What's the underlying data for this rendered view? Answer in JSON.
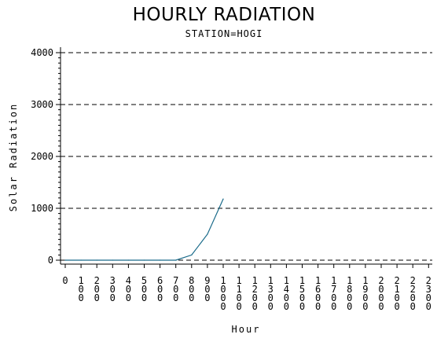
{
  "chart_data": {
    "type": "line",
    "title": "HOURLY RADIATION",
    "subtitle": "STATION=HOGI",
    "xlabel": "Hour",
    "ylabel": "Solar Radiation",
    "x": [
      0,
      100,
      200,
      300,
      400,
      500,
      600,
      700,
      800,
      900,
      1000
    ],
    "series": [
      {
        "values": [
          0,
          0,
          0,
          0,
          0,
          0,
          0,
          0,
          100,
          500,
          1180
        ],
        "color": "#1a6b8a"
      }
    ],
    "xticks": [
      "0",
      "100",
      "200",
      "300",
      "400",
      "500",
      "600",
      "700",
      "800",
      "900",
      "1000",
      "1100",
      "1200",
      "1300",
      "1400",
      "1500",
      "1600",
      "1700",
      "1800",
      "1900",
      "2000",
      "2100",
      "2200",
      "2300"
    ],
    "yticks": [
      "0",
      "1000",
      "2000",
      "3000",
      "4000"
    ],
    "ylim": [
      0,
      4000
    ],
    "xlim": [
      0,
      2300
    ],
    "grid": "horizontal dashed",
    "legend": "none"
  }
}
